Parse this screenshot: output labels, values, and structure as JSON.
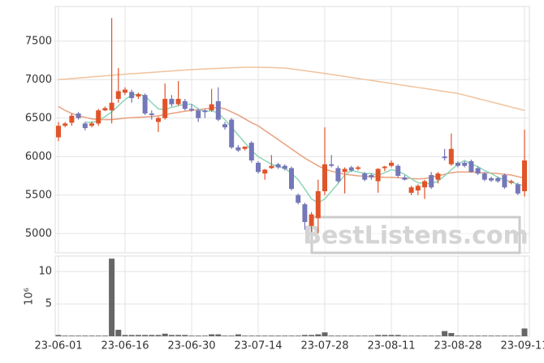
{
  "chart_data": [
    {
      "type": "candlestick",
      "watermark": "BestListens.com",
      "categories": [
        "23-06-01",
        null,
        null,
        null,
        null,
        null,
        null,
        null,
        null,
        null,
        "23-06-16",
        null,
        null,
        null,
        null,
        null,
        null,
        null,
        null,
        null,
        "23-06-30",
        null,
        null,
        null,
        null,
        null,
        null,
        null,
        null,
        null,
        "23-07-14",
        null,
        null,
        null,
        null,
        null,
        null,
        null,
        null,
        null,
        "23-07-28",
        null,
        null,
        null,
        null,
        null,
        null,
        null,
        null,
        null,
        "23-08-11",
        null,
        null,
        null,
        null,
        null,
        null,
        null,
        null,
        null,
        "23-08-28",
        null,
        null,
        null,
        null,
        null,
        null,
        null,
        null,
        null,
        "23-09-11"
      ],
      "open": [
        6250,
        6400,
        6440,
        6560,
        6430,
        6400,
        6430,
        6600,
        6600,
        6750,
        6830,
        6840,
        6780,
        6800,
        6560,
        6450,
        6500,
        6750,
        6680,
        6720,
        6620,
        6600,
        6600,
        6600,
        6720,
        6420,
        6480,
        6120,
        6100,
        6180,
        5920,
        5780,
        5850,
        5900,
        5880,
        5850,
        5500,
        5380,
        5100,
        5200,
        5550,
        5900,
        5850,
        5800,
        5860,
        5840,
        5780,
        5760,
        5680,
        5850,
        5880,
        5880,
        5730,
        5530,
        5560,
        5600,
        5760,
        5700,
        6000,
        5900,
        5920,
        5920,
        5940,
        5850,
        5780,
        5720,
        5720,
        5760,
        5660,
        5640,
        5550
      ],
      "high": [
        6450,
        6450,
        6560,
        6580,
        6450,
        6460,
        6620,
        6650,
        7800,
        7150,
        6900,
        6870,
        6830,
        6820,
        6600,
        6520,
        6950,
        6800,
        6980,
        6750,
        6680,
        6620,
        6620,
        6880,
        6900,
        6450,
        6500,
        6150,
        6130,
        6200,
        5940,
        5840,
        6020,
        5920,
        5900,
        5870,
        5520,
        5400,
        5280,
        5700,
        6380,
        6020,
        5880,
        5860,
        5880,
        5880,
        5800,
        5780,
        5850,
        5880,
        5950,
        5900,
        5760,
        5620,
        5640,
        5700,
        5800,
        5800,
        6100,
        6300,
        5940,
        5940,
        5960,
        5870,
        5800,
        5740,
        5740,
        5780,
        5700,
        5660,
        6350
      ],
      "low": [
        6200,
        6380,
        6400,
        6480,
        6340,
        6380,
        6400,
        6590,
        6430,
        6700,
        6800,
        6700,
        6750,
        6540,
        6480,
        6320,
        6480,
        6650,
        6660,
        6600,
        6580,
        6450,
        6500,
        6580,
        6460,
        6350,
        6100,
        6060,
        6080,
        5920,
        5780,
        5700,
        5840,
        5840,
        5820,
        5560,
        5380,
        5050,
        5020,
        5000,
        5500,
        5860,
        5660,
        5520,
        5800,
        5820,
        5680,
        5700,
        5530,
        5810,
        5860,
        5730,
        5690,
        5500,
        5500,
        5450,
        5580,
        5650,
        5950,
        5880,
        5860,
        5860,
        5790,
        5760,
        5680,
        5670,
        5660,
        5580,
        5640,
        5500,
        5480
      ],
      "close": [
        6400,
        6430,
        6530,
        6500,
        6370,
        6430,
        6600,
        6630,
        6700,
        6850,
        6870,
        6760,
        6810,
        6560,
        6540,
        6500,
        6750,
        6680,
        6750,
        6620,
        6600,
        6500,
        6580,
        6680,
        6480,
        6380,
        6120,
        6080,
        6130,
        5950,
        5800,
        5830,
        5880,
        5860,
        5840,
        5580,
        5400,
        5150,
        5250,
        5550,
        5900,
        5880,
        5680,
        5840,
        5820,
        5860,
        5700,
        5730,
        5840,
        5870,
        5920,
        5750,
        5700,
        5600,
        5620,
        5680,
        5600,
        5780,
        5980,
        6100,
        5880,
        5880,
        5800,
        5780,
        5700,
        5690,
        5680,
        5600,
        5680,
        5520,
        5950
      ],
      "up_color": "#e0542a",
      "down_color": "#7477b8",
      "series": [
        {
          "color": "#f0c39d",
          "values": [
            7000,
            7007,
            7014,
            7021,
            7028,
            7035,
            7042,
            7049,
            7056,
            7063,
            7070,
            7076,
            7082,
            7088,
            7094,
            7100,
            7106,
            7112,
            7118,
            7124,
            7130,
            7134,
            7138,
            7142,
            7146,
            7150,
            7154,
            7157,
            7160,
            7160,
            7159,
            7158,
            7156,
            7153,
            7150,
            7140,
            7128,
            7116,
            7104,
            7092,
            7080,
            7067,
            7054,
            7041,
            7028,
            7015,
            7002,
            6989,
            6976,
            6963,
            6950,
            6937,
            6924,
            6911,
            6898,
            6885,
            6872,
            6859,
            6846,
            6833,
            6820,
            6798,
            6776,
            6754,
            6732,
            6710,
            6688,
            6666,
            6644,
            6622,
            6600
          ]
        },
        {
          "color": "#e9a07e",
          "values": [
            6650,
            6600,
            6560,
            6530,
            6510,
            6490,
            6480,
            6480,
            6480,
            6490,
            6500,
            6505,
            6510,
            6515,
            6520,
            6530,
            6545,
            6560,
            6575,
            6590,
            6600,
            6610,
            6620,
            6630,
            6640,
            6620,
            6580,
            6540,
            6490,
            6440,
            6400,
            6340,
            6280,
            6220,
            6160,
            6100,
            6040,
            5980,
            5930,
            5880,
            5840,
            5810,
            5790,
            5770,
            5760,
            5750,
            5745,
            5740,
            5735,
            5730,
            5730,
            5725,
            5720,
            5715,
            5710,
            5715,
            5730,
            5750,
            5770,
            5790,
            5800,
            5800,
            5800,
            5795,
            5790,
            5785,
            5780,
            5770,
            5760,
            5740,
            5720
          ]
        },
        {
          "color": "#8fd4b8",
          "values": [
            null,
            null,
            null,
            null,
            6450,
            6440,
            6470,
            6520,
            6580,
            6660,
            6740,
            6800,
            6810,
            6790,
            6700,
            6620,
            6610,
            6640,
            6660,
            6680,
            6680,
            6620,
            6580,
            6600,
            6560,
            6480,
            6380,
            6280,
            6180,
            6080,
            6000,
            5950,
            5900,
            5870,
            5850,
            5780,
            5700,
            5580,
            5450,
            5400,
            5450,
            5550,
            5650,
            5760,
            5820,
            5800,
            5780,
            5780,
            5760,
            5790,
            5830,
            5810,
            5770,
            5710,
            5660,
            5650,
            5650,
            5680,
            5750,
            5830,
            5900,
            5950,
            5900,
            5870,
            5820,
            5780,
            5730,
            5700,
            5670,
            5640,
            5620
          ]
        }
      ],
      "ylim": [
        4750,
        7950
      ],
      "yticks": [
        5000,
        5500,
        6000,
        6500,
        7000,
        7500
      ],
      "grid": true
    },
    {
      "type": "bar",
      "ylabel": "10⁶",
      "color": "#666666",
      "values": [
        0.2,
        0.1,
        0.1,
        0.1,
        0.1,
        0.1,
        0.1,
        0.1,
        12,
        1,
        0.2,
        0.2,
        0.2,
        0.2,
        0.2,
        0.2,
        0.4,
        0.2,
        0.2,
        0.2,
        0.1,
        0.1,
        0.1,
        0.3,
        0.3,
        0.1,
        0.1,
        0.3,
        0.1,
        0.1,
        0.1,
        0.1,
        0.1,
        0.1,
        0.1,
        0.1,
        0.1,
        0.2,
        0.2,
        0.3,
        0.6,
        0.1,
        0.1,
        0.1,
        0.1,
        0.1,
        0.1,
        0.1,
        0.2,
        0.2,
        0.2,
        0.2,
        0.1,
        0.1,
        0.1,
        0.1,
        0.1,
        0.1,
        0.8,
        0.5,
        0.1,
        0.1,
        0.1,
        0.1,
        0.1,
        0.1,
        0.1,
        0.1,
        0.1,
        0.1,
        1.2
      ],
      "ylim": [
        0,
        12.4
      ],
      "yticks": [
        5,
        10
      ],
      "grid": true
    }
  ]
}
